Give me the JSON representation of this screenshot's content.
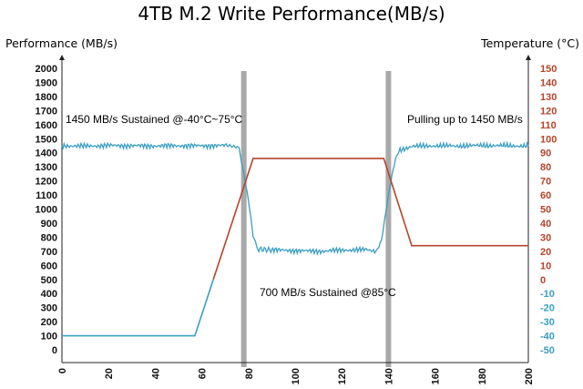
{
  "chart_data": {
    "type": "line",
    "title": "4TB M.2 Write Performance(MB/s)",
    "ylabel_left": "Performance (MB/s)",
    "ylabel_right": "Temperature (°C)",
    "xlim": [
      0,
      200
    ],
    "xticks": [
      0,
      20,
      40,
      60,
      80,
      100,
      120,
      140,
      160,
      180,
      200
    ],
    "ylim_left": [
      0,
      2000
    ],
    "yticks_left": [
      0,
      100,
      200,
      300,
      400,
      500,
      600,
      700,
      800,
      900,
      1000,
      1100,
      1200,
      1300,
      1400,
      1500,
      1600,
      1700,
      1800,
      1900,
      2000
    ],
    "ylim_right": [
      -50,
      150
    ],
    "yticks_right": [
      -50,
      -40,
      -30,
      -20,
      -10,
      0,
      10,
      20,
      30,
      40,
      50,
      60,
      70,
      80,
      90,
      100,
      110,
      120,
      130,
      140,
      150
    ],
    "grid": false,
    "series": [
      {
        "color": "#3a9ec2",
        "axis": "left",
        "x": [
          0,
          10,
          20,
          30,
          40,
          50,
          60,
          70,
          76,
          78,
          80,
          82,
          84,
          90,
          100,
          110,
          120,
          130,
          135,
          137,
          139,
          141,
          143,
          145,
          150,
          160,
          170,
          180,
          190,
          200
        ],
        "y": [
          1450,
          1448,
          1452,
          1450,
          1449,
          1451,
          1450,
          1452,
          1440,
          1250,
          1050,
          800,
          720,
          710,
          705,
          700,
          708,
          712,
          700,
          780,
          1000,
          1200,
          1350,
          1420,
          1445,
          1450,
          1448,
          1452,
          1450,
          1448
        ]
      },
      {
        "color": "#b5442a",
        "axis": "right",
        "x": [
          0,
          57,
          82,
          138,
          150,
          200
        ],
        "y": [
          -40,
          -40,
          86,
          86,
          24,
          24
        ]
      }
    ],
    "temperature_colors": {
      "above_zero": "#b5442a",
      "below_zero": "#3a9ec2"
    },
    "shaded_markers": [
      {
        "x": 78
      },
      {
        "x": 140
      }
    ],
    "annotations": [
      {
        "text": "1450 MB/s Sustained @-40°C~75°C"
      },
      {
        "text": "Pulling up to 1450 MB/s"
      },
      {
        "text": "700 MB/s Sustained @85°C"
      }
    ]
  }
}
